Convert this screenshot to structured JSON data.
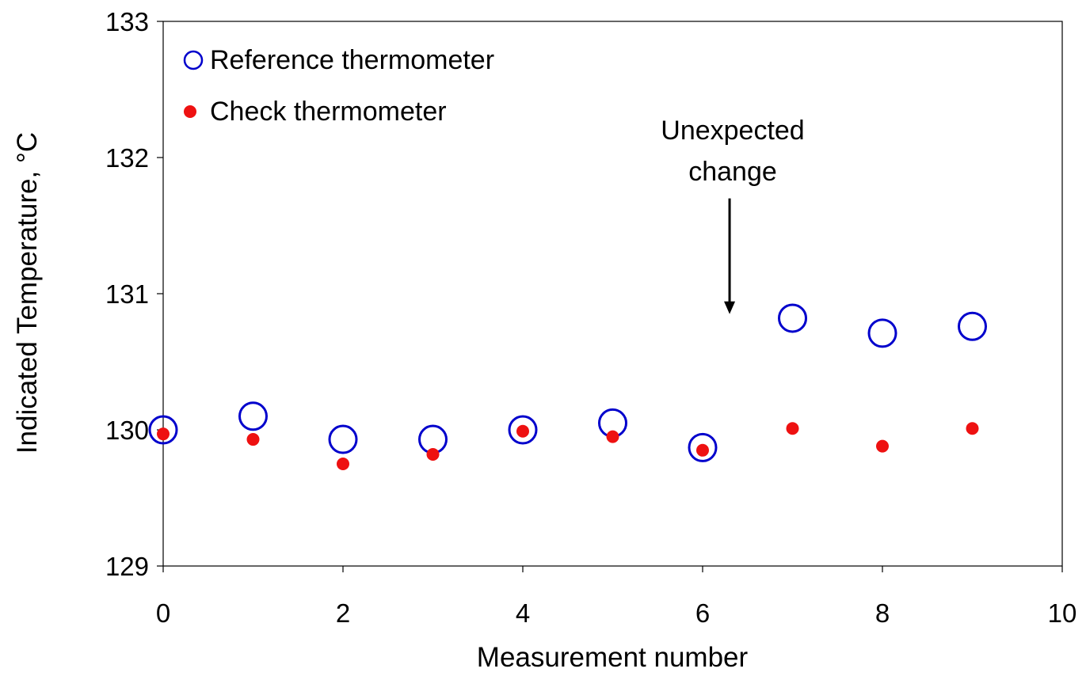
{
  "chart_data": {
    "type": "scatter",
    "xlabel": "Measurement number",
    "ylabel": "Indicated Temperature, °C",
    "xlim": [
      0,
      10
    ],
    "ylim": [
      129,
      133
    ],
    "xticks": [
      0,
      2,
      4,
      6,
      8,
      10
    ],
    "yticks": [
      129,
      130,
      131,
      132,
      133
    ],
    "grid": false,
    "legend_position": "top-left",
    "series": [
      {
        "name": "Reference thermometer",
        "marker": "open-circle",
        "color": "#0000cc",
        "x": [
          0,
          1,
          2,
          3,
          4,
          5,
          6,
          7,
          8,
          9
        ],
        "y": [
          130.0,
          130.1,
          129.93,
          129.93,
          130.0,
          130.05,
          129.87,
          130.82,
          130.71,
          130.76
        ]
      },
      {
        "name": "Check thermometer",
        "marker": "filled-circle",
        "color": "#ee1111",
        "x": [
          0,
          1,
          2,
          3,
          4,
          5,
          6,
          7,
          8,
          9
        ],
        "y": [
          129.97,
          129.93,
          129.75,
          129.82,
          129.99,
          129.95,
          129.85,
          130.01,
          129.88,
          130.01
        ]
      }
    ],
    "annotations": [
      {
        "text_line1": "Unexpected",
        "text_line2": "change",
        "arrow_x": 6.3,
        "arrow_from_y": 131.7,
        "arrow_to_y": 130.85
      }
    ]
  }
}
